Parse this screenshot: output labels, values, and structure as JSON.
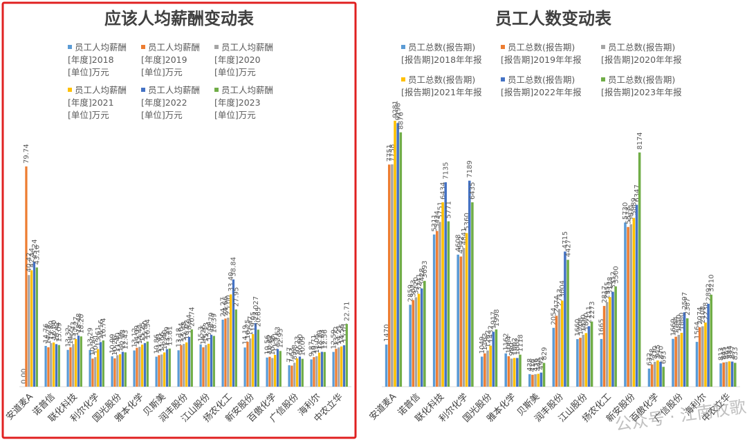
{
  "chart_data": [
    {
      "type": "bar",
      "title": "应该人均薪酬变动表",
      "xlabel": "",
      "ylabel": "",
      "ylim": [
        0,
        90
      ],
      "grid": false,
      "legend_position": "top",
      "highlighted": true,
      "highlight_color": "#e02020",
      "categories": [
        "安道麦A",
        "诺普信",
        "联化科技",
        "利尔化学",
        "国光股份",
        "雅本化学",
        "贝斯美",
        "润丰股份",
        "江山股份",
        "扬农化工",
        "新安股份",
        "百傲化学",
        "广信股份",
        "海利尔",
        "中农立华"
      ],
      "series": [
        {
          "name": "员工人均薪酬[年度]2018[单位]万元",
          "color": "#5b9bd5",
          "labels": [
            "0.00",
            "14.76",
            "13.32",
            "13.29",
            "10.99",
            "13.12",
            "10.86",
            "13.18",
            "15.3",
            "24.27",
            "14.19",
            "10.56",
            "7.77",
            "9.87",
            "12.59"
          ],
          "values": [
            0.0,
            14.76,
            13.32,
            13.29,
            10.99,
            13.12,
            10.86,
            13.18,
            15.3,
            24.27,
            14.19,
            10.56,
            7.77,
            9.87,
            12.59
          ]
        },
        {
          "name": "员工人均薪酬[年度]2019[单位]万元",
          "color": "#ed7d31",
          "labels": [
            "79.74",
            "14.28",
            "14.27",
            "10.17",
            "10.26",
            "14.09",
            "11.41",
            "15.04",
            "14.26",
            "24.66",
            "16.25",
            "10.82",
            "7.63",
            "10.71",
            "13.72"
          ],
          "values": [
            79.74,
            14.28,
            14.27,
            10.17,
            10.26,
            14.09,
            11.41,
            15.04,
            14.26,
            24.66,
            16.25,
            10.82,
            7.63,
            10.71,
            13.72
          ]
        },
        {
          "name": "员工人均薪酬[年度]2020[单位]万元",
          "color": "#a5a5a5",
          "labels": [
            "40.42",
            "15.80",
            "15.43",
            "10.71",
            "11.40",
            "14.42",
            "11.66",
            "15.48",
            "15.13",
            "25.00",
            "17.47",
            "10.38",
            "8.68",
            "11.05",
            "14.21"
          ],
          "values": [
            40.42,
            15.8,
            15.43,
            10.71,
            11.4,
            14.42,
            11.66,
            15.48,
            15.13,
            25.0,
            17.47,
            10.38,
            8.68,
            11.05,
            14.21
          ]
        },
        {
          "name": "员工人均薪酬[年度]2021[单位]万元",
          "color": "#ffc000",
          "labels": [
            "42.14",
            "16.00",
            "17.27",
            "13.61",
            "11.74",
            "15.25",
            "12.40",
            "16.02",
            "15.54",
            "33.40",
            "19.05",
            "11.51",
            "10.23",
            "12.30",
            "14.56"
          ],
          "values": [
            42.14,
            16.0,
            17.27,
            13.61,
            11.74,
            15.25,
            12.4,
            16.02,
            15.54,
            33.4,
            19.05,
            11.51,
            10.23,
            12.3,
            14.56
          ]
        },
        {
          "name": "员工人均薪酬[年度]2022[单位]万元",
          "color": "#4472c4",
          "labels": [
            "45.24",
            "15.42",
            "18.48",
            "16.16",
            "12.63",
            "15.80",
            "13.59",
            "18.04",
            "18.79",
            "38.84",
            "23.027",
            "13.63",
            "10.90",
            "12.63",
            "15.01"
          ],
          "values": [
            45.24,
            15.42,
            18.48,
            16.16,
            12.63,
            15.8,
            13.59,
            18.04,
            18.79,
            38.84,
            23.027,
            13.63,
            10.9,
            12.63,
            15.01
          ]
        },
        {
          "name": "员工人均薪酬[年度]2023[单位]万元",
          "color": "#70ad47",
          "labels": [
            "43.16",
            "15.09",
            "18.20",
            "16.74",
            "12.43",
            "16.34",
            "13.81",
            "20.74",
            "18.39",
            "27.95",
            "20.65",
            "12.93",
            "10.09",
            "12.56",
            "22.71"
          ],
          "values": [
            43.16,
            15.09,
            18.2,
            16.74,
            12.43,
            16.34,
            13.81,
            20.74,
            18.39,
            27.95,
            20.65,
            12.93,
            10.09,
            12.56,
            22.71
          ]
        }
      ]
    },
    {
      "type": "bar",
      "title": "员工人数变动表",
      "xlabel": "",
      "ylabel": "",
      "ylim": [
        0,
        10000
      ],
      "grid": false,
      "legend_position": "top",
      "watermark": "公众号 · 江南牧歌",
      "categories": [
        "安道麦A",
        "诺普信",
        "联化科技",
        "利尔化学",
        "国光股份",
        "雅本化学",
        "贝斯美",
        "润丰股份",
        "江山股份",
        "扬农化工",
        "新安股份",
        "百傲化学",
        "广信股份",
        "海利尔",
        "中农立华"
      ],
      "series": [
        {
          "name": "员工总数(报告期)[报告期]2018年年报",
          "color": "#5b9bd5",
          "labels": [
            "1470",
            "2859",
            "5311",
            "4608",
            "1049",
            "1162",
            "438",
            "2054",
            "1660",
            "1665",
            "5730",
            "632",
            "1669",
            "1564",
            "813"
          ],
          "values": [
            1470,
            2859,
            5311,
            4608,
            1049,
            1162,
            438,
            2054,
            1660,
            1665,
            5730,
            632,
            1669,
            1564,
            813
          ]
        },
        {
          "name": "员工总数(报告期)[报告期]2019年年报",
          "color": "#ed7d31",
          "labels": [
            "7751",
            "3023",
            "5434",
            "4542",
            "1163",
            "1064",
            "416",
            "2474",
            "1708",
            "2817",
            "5573",
            "778",
            "1744",
            "2074",
            "845"
          ],
          "values": [
            7751,
            3023,
            5434,
            4542,
            1163,
            1064,
            416,
            2474,
            1708,
            2817,
            5573,
            778,
            1744,
            2074,
            845
          ]
        },
        {
          "name": "员工总数(报告期)[报告期]2020年年报",
          "color": "#a5a5a5",
          "labels": [
            "7758",
            "3120",
            "5751",
            "4841",
            "1262",
            "980",
            "436",
            "2713",
            "1810",
            "2955",
            "5671",
            "870",
            "1810",
            "2108",
            "861"
          ],
          "values": [
            7758,
            3120,
            5751,
            4841,
            1262,
            980,
            436,
            2713,
            1810,
            2955,
            5671,
            870,
            1810,
            2108,
            861
          ]
        },
        {
          "name": "员工总数(报告期)[报告期]2021年年报",
          "color": "#ffc000",
          "labels": [
            "9281",
            "3241",
            "6434",
            "5360",
            "1432",
            "1002",
            "448",
            "3004",
            "1870",
            "3128",
            "5889",
            "915",
            "1880",
            "2238",
            "884"
          ],
          "values": [
            9281,
            3241,
            6434,
            5360,
            1432,
            1002,
            448,
            3004,
            1870,
            3128,
            5889,
            915,
            1880,
            2238,
            884
          ]
        },
        {
          "name": "员工总数(报告期)[报告期]2022年年报",
          "color": "#4472c4",
          "labels": [
            "9198",
            "3428",
            "7135",
            "7189",
            "1917",
            "1002",
            "492",
            "4715",
            "2111",
            "3312",
            "6347",
            "870",
            "2597",
            "2892",
            "877"
          ],
          "values": [
            9198,
            3428,
            7135,
            7189,
            1917,
            1002,
            492,
            4715,
            2111,
            3312,
            6347,
            870,
            2597,
            2892,
            877
          ]
        },
        {
          "name": "员工总数(报告期)[报告期]2023年年报",
          "color": "#70ad47",
          "labels": [
            "8876",
            "3693",
            "5771",
            "6435",
            "1998",
            "1118",
            "829",
            "4427",
            "2273",
            "3500",
            "8174",
            "693",
            "2387",
            "3210",
            "833"
          ],
          "values": [
            8876,
            3693,
            5771,
            6435,
            1998,
            1118,
            829,
            4427,
            2273,
            3500,
            8174,
            693,
            2387,
            3210,
            833
          ]
        }
      ]
    }
  ]
}
